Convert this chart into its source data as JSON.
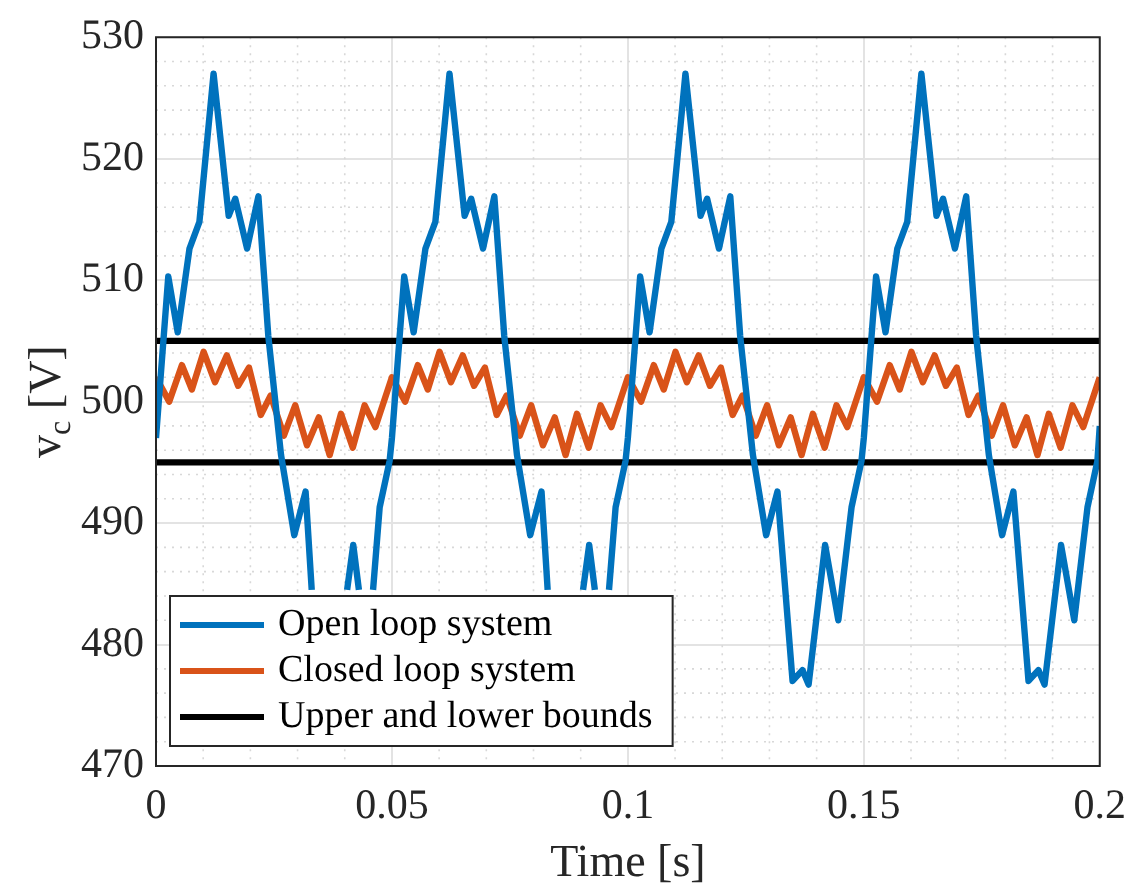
{
  "chart_data": {
    "type": "line",
    "xlabel": "Time [s]",
    "ylabel": "v$_{c}$ [V]",
    "xlim": [
      0,
      0.2
    ],
    "xticks": [
      0,
      0.05,
      0.1,
      0.15,
      0.2
    ],
    "ylim": [
      470,
      530
    ],
    "yticks": [
      470,
      480,
      490,
      500,
      510,
      520,
      530
    ],
    "grid": true,
    "legend": "bottom left",
    "marker": "none",
    "line_style": "solid",
    "series": [
      {
        "name": "Open loop system",
        "color": "#0072bd",
        "x": [
          0,
          0.0026,
          0.0046,
          0.0071,
          0.0092,
          0.0122,
          0.0154,
          0.0168,
          0.0193,
          0.0217,
          0.0238,
          0.0265,
          0.0293,
          0.0317,
          0.033,
          0.0349,
          0.037,
          0.0383,
          0.0405,
          0.0418,
          0.043,
          0.0446,
          0.046,
          0.0474,
          0.0495,
          0.05,
          0.0526,
          0.0546,
          0.0571,
          0.0592,
          0.0622,
          0.0654,
          0.0668,
          0.0693,
          0.0717,
          0.0738,
          0.0765,
          0.0793,
          0.0817,
          0.083,
          0.0849,
          0.087,
          0.0883,
          0.0905,
          0.0918,
          0.093,
          0.0946,
          0.096,
          0.0974,
          0.0995,
          0.1,
          0.1026,
          0.1046,
          0.1071,
          0.1092,
          0.1122,
          0.1154,
          0.1168,
          0.1193,
          0.1217,
          0.1238,
          0.1265,
          0.1293,
          0.1317,
          0.1349,
          0.137,
          0.1383,
          0.1418,
          0.1446,
          0.1474,
          0.1495,
          0.15,
          0.1526,
          0.1546,
          0.1571,
          0.1592,
          0.1622,
          0.1654,
          0.1668,
          0.1693,
          0.1717,
          0.1738,
          0.1765,
          0.1793,
          0.1817,
          0.1849,
          0.187,
          0.1883,
          0.1918,
          0.1946,
          0.1974,
          0.1995,
          0.2
        ],
        "values": [
          497,
          510.3,
          505.7,
          512.6,
          514.8,
          527,
          515.3,
          516.7,
          512.6,
          516.9,
          505.4,
          495.6,
          489,
          492.6,
          484.5,
          null,
          null,
          null,
          484.5,
          488.2,
          484.5,
          null,
          484.5,
          491.3,
          495.1,
          497,
          510.3,
          505.7,
          512.6,
          514.8,
          527,
          515.3,
          516.7,
          512.6,
          516.9,
          505.4,
          495.6,
          489,
          492.6,
          484.5,
          null,
          null,
          null,
          484.5,
          488.2,
          484.5,
          null,
          484.5,
          491.3,
          495.1,
          497,
          510.3,
          505.7,
          512.6,
          514.8,
          527,
          515.3,
          516.7,
          512.6,
          516.9,
          505.4,
          495.6,
          489,
          492.6,
          477,
          477.9,
          476.7,
          488.2,
          482,
          491.3,
          495.1,
          497,
          510.3,
          505.7,
          512.6,
          514.8,
          527,
          515.3,
          516.7,
          512.6,
          516.9,
          505.4,
          495.6,
          489,
          492.6,
          477,
          477.9,
          476.7,
          488.2,
          482,
          491.3,
          495.1,
          498
        ]
      },
      {
        "name": "Closed loop system",
        "color": "#d95319",
        "x": [
          0,
          0.0028,
          0.0055,
          0.0076,
          0.0101,
          0.0125,
          0.015,
          0.0174,
          0.0197,
          0.0222,
          0.0243,
          0.0271,
          0.0295,
          0.032,
          0.0345,
          0.0368,
          0.0392,
          0.0417,
          0.0442,
          0.0465,
          0.05,
          0.0528,
          0.0555,
          0.0576,
          0.0601,
          0.0625,
          0.065,
          0.0674,
          0.0697,
          0.0722,
          0.0743,
          0.0771,
          0.0795,
          0.082,
          0.0845,
          0.0868,
          0.0892,
          0.0917,
          0.0942,
          0.0965,
          0.1,
          0.1028,
          0.1055,
          0.1076,
          0.1101,
          0.1125,
          0.115,
          0.1174,
          0.1197,
          0.1222,
          0.1243,
          0.1271,
          0.1295,
          0.132,
          0.1345,
          0.1368,
          0.1392,
          0.1417,
          0.1442,
          0.1465,
          0.15,
          0.1528,
          0.1555,
          0.1576,
          0.1601,
          0.1625,
          0.165,
          0.1674,
          0.1697,
          0.1722,
          0.1743,
          0.1771,
          0.1795,
          0.182,
          0.1845,
          0.1868,
          0.1892,
          0.1917,
          0.1942,
          0.1965,
          0.2
        ],
        "values": [
          502,
          500,
          503,
          501,
          504.1,
          501.6,
          503.8,
          501.3,
          502.8,
          498.9,
          500.5,
          497.2,
          499.7,
          496.4,
          498.7,
          495.6,
          499,
          496.2,
          499.7,
          497.9,
          502,
          500,
          503,
          501,
          504.1,
          501.6,
          503.8,
          501.3,
          502.8,
          498.9,
          500.5,
          497.2,
          499.7,
          496.4,
          498.7,
          495.6,
          499,
          496.2,
          499.7,
          497.9,
          502,
          500,
          503,
          501,
          504.1,
          501.6,
          503.8,
          501.3,
          502.8,
          498.9,
          500.5,
          497.2,
          499.7,
          496.4,
          498.7,
          495.6,
          499,
          496.2,
          499.7,
          497.9,
          502,
          500,
          503,
          501,
          504.1,
          501.6,
          503.8,
          501.3,
          502.8,
          498.9,
          500.5,
          497.2,
          499.7,
          496.4,
          498.7,
          495.6,
          499,
          496.2,
          499.7,
          497.9,
          502
        ]
      }
    ],
    "ref_lines": [
      {
        "axis": "y",
        "value": 505,
        "label": "Upper and lower bounds",
        "color": "#000000"
      },
      {
        "axis": "y",
        "value": 495,
        "color": "#000000"
      }
    ]
  }
}
